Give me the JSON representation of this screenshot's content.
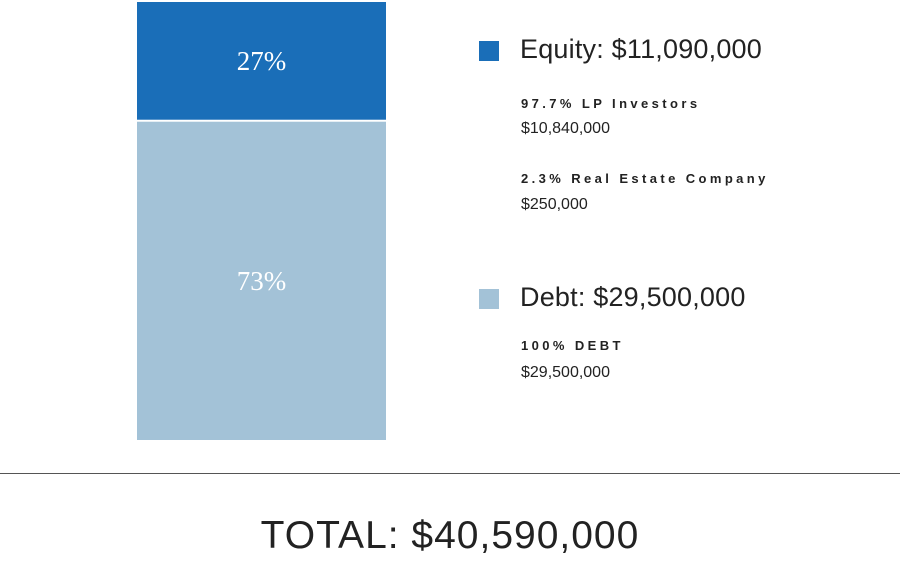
{
  "chart_data": {
    "type": "bar",
    "stacked": true,
    "categories": [
      ""
    ],
    "series": [
      {
        "name": "Equity",
        "values": [
          27
        ],
        "label": "27%",
        "color": "#1a6eb8"
      },
      {
        "name": "Debt",
        "values": [
          73
        ],
        "label": "73%",
        "color": "#a3c2d7"
      }
    ],
    "ylim": [
      0,
      100
    ],
    "legend": [
      {
        "title": "Equity: $11,090,000",
        "color": "#1a6eb8",
        "items": [
          {
            "name": "97.7% LP Investors",
            "amount": "$10,840,000"
          },
          {
            "name": "2.3% Real Estate Company",
            "amount": "$250,000"
          }
        ]
      },
      {
        "title": "Debt: $29,500,000",
        "color": "#a3c2d7",
        "items": [
          {
            "name": "100% DEBT",
            "amount": "$29,500,000"
          }
        ]
      }
    ],
    "total": "TOTAL: $40,590,000"
  }
}
